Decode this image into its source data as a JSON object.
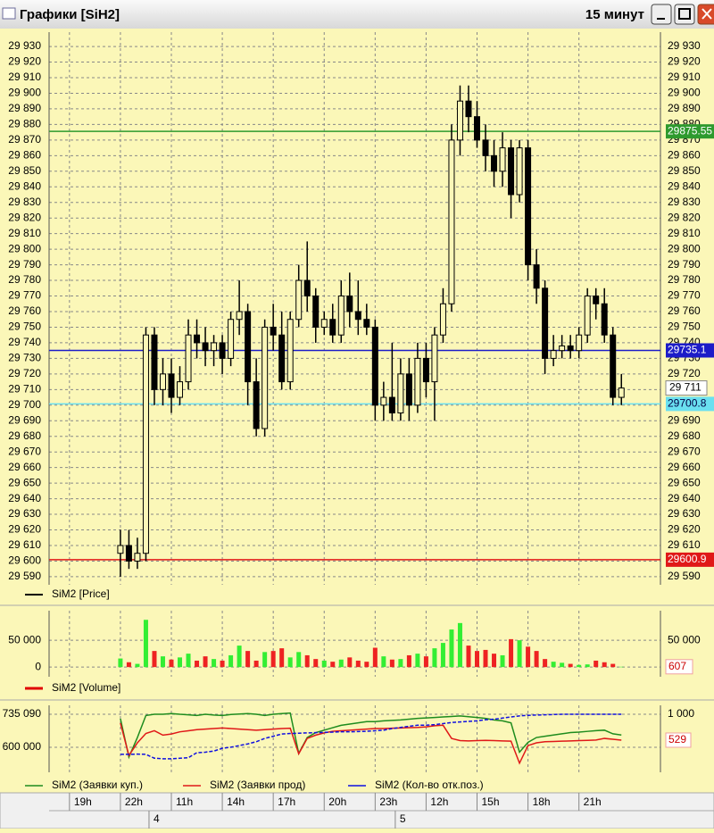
{
  "window": {
    "title": "Графики [SiH2]",
    "timeframe": "15 минут"
  },
  "time_axis": {
    "xlim": [
      -8.4,
      63.6
    ],
    "xticks": [
      {
        "value": -6,
        "label": "19h"
      },
      {
        "value": 0,
        "label": "22h"
      },
      {
        "value": 6,
        "label": "11h"
      },
      {
        "value": 12,
        "label": "14h"
      },
      {
        "value": 18,
        "label": "17h"
      },
      {
        "value": 24,
        "label": "20h"
      },
      {
        "value": 30,
        "label": "23h"
      },
      {
        "value": 36,
        "label": "12h"
      },
      {
        "value": 42,
        "label": "15h"
      },
      {
        "value": 48,
        "label": "18h"
      },
      {
        "value": 54,
        "label": "21h"
      }
    ],
    "dates": [
      {
        "value": 4,
        "label": "4"
      },
      {
        "value": 33,
        "label": "5"
      }
    ]
  },
  "chart_data": [
    {
      "type": "candlestick",
      "grid": true,
      "ylim": [
        29584.8,
        29939.2
      ],
      "yticks": [
        {
          "value": 29930,
          "label": "29 930"
        },
        {
          "value": 29920,
          "label": "29 920"
        },
        {
          "value": 29910,
          "label": "29 910"
        },
        {
          "value": 29900,
          "label": "29 900"
        },
        {
          "value": 29890,
          "label": "29 890"
        },
        {
          "value": 29880,
          "label": "29 880"
        },
        {
          "value": 29870,
          "label": "29 870"
        },
        {
          "value": 29860,
          "label": "29 860"
        },
        {
          "value": 29850,
          "label": "29 850"
        },
        {
          "value": 29840,
          "label": "29 840"
        },
        {
          "value": 29830,
          "label": "29 830"
        },
        {
          "value": 29820,
          "label": "29 820"
        },
        {
          "value": 29810,
          "label": "29 810"
        },
        {
          "value": 29800,
          "label": "29 800"
        },
        {
          "value": 29790,
          "label": "29 790"
        },
        {
          "value": 29780,
          "label": "29 780"
        },
        {
          "value": 29770,
          "label": "29 770"
        },
        {
          "value": 29760,
          "label": "29 760"
        },
        {
          "value": 29750,
          "label": "29 750"
        },
        {
          "value": 29740,
          "label": "29 740"
        },
        {
          "value": 29730,
          "label": "29 730"
        },
        {
          "value": 29720,
          "label": "29 720"
        },
        {
          "value": 29710,
          "label": "29 710"
        },
        {
          "value": 29700,
          "label": "29 700"
        },
        {
          "value": 29690,
          "label": "29 690"
        },
        {
          "value": 29680,
          "label": "29 680"
        },
        {
          "value": 29670,
          "label": "29 670"
        },
        {
          "value": 29660,
          "label": "29 660"
        },
        {
          "value": 29650,
          "label": "29 650"
        },
        {
          "value": 29640,
          "label": "29 640"
        },
        {
          "value": 29630,
          "label": "29 630"
        },
        {
          "value": 29620,
          "label": "29 620"
        },
        {
          "value": 29610,
          "label": "29 610"
        },
        {
          "value": 29600,
          "label": "29 600"
        },
        {
          "value": 29590,
          "label": "29 590"
        }
      ],
      "series": [
        {
          "name": "SiM2 [Price]",
          "color": "#000000",
          "open": [
            29605,
            29610,
            29600,
            29605,
            29745,
            29710,
            29720,
            29705,
            29715,
            29745,
            29740,
            29735,
            29740,
            29730,
            29755,
            29760,
            29715,
            29685,
            29750,
            29745,
            29715,
            29755,
            29780,
            29770,
            29750,
            29755,
            29745,
            29770,
            29760,
            29755,
            29750,
            29700,
            29705,
            29695,
            29720,
            29700,
            29730,
            29715,
            29745,
            29765,
            29870,
            29895,
            29885,
            29870,
            29860,
            29850,
            29865,
            29835,
            29865,
            29790,
            29775,
            29730,
            29735,
            29738,
            29735,
            29745,
            29770,
            29765,
            29745,
            29705
          ],
          "high": [
            29620,
            29620,
            29615,
            29750,
            29750,
            29730,
            29730,
            29725,
            29755,
            29755,
            29750,
            29745,
            29745,
            29760,
            29780,
            29765,
            29730,
            29755,
            29765,
            29760,
            29760,
            29790,
            29805,
            29775,
            29760,
            29765,
            29780,
            29785,
            29780,
            29765,
            29755,
            29715,
            29740,
            29730,
            29730,
            29740,
            29740,
            29750,
            29775,
            29880,
            29905,
            29905,
            29895,
            29880,
            29870,
            29875,
            29870,
            29870,
            29870,
            29800,
            29780,
            29745,
            29745,
            29745,
            29750,
            29775,
            29775,
            29775,
            29750,
            29720
          ],
          "low": [
            29590,
            29595,
            29595,
            29600,
            29700,
            29700,
            29695,
            29700,
            29710,
            29730,
            29725,
            29725,
            29720,
            29725,
            29745,
            29700,
            29680,
            29680,
            29735,
            29710,
            29710,
            29750,
            29760,
            29740,
            29745,
            29740,
            29740,
            29750,
            29745,
            29745,
            29690,
            29690,
            29690,
            29690,
            29690,
            29695,
            29705,
            29690,
            29740,
            29760,
            29860,
            29875,
            29865,
            29850,
            29840,
            29840,
            29820,
            29830,
            29780,
            29765,
            29720,
            29725,
            29730,
            29730,
            29730,
            29740,
            29755,
            29740,
            29700,
            29700
          ],
          "close": [
            29610,
            29600,
            29605,
            29745,
            29710,
            29720,
            29705,
            29715,
            29745,
            29740,
            29735,
            29740,
            29730,
            29755,
            29760,
            29715,
            29685,
            29750,
            29745,
            29715,
            29755,
            29780,
            29770,
            29750,
            29755,
            29745,
            29770,
            29760,
            29755,
            29750,
            29700,
            29705,
            29695,
            29720,
            29700,
            29730,
            29715,
            29745,
            29765,
            29870,
            29895,
            29885,
            29870,
            29860,
            29850,
            29865,
            29835,
            29865,
            29790,
            29775,
            29730,
            29735,
            29738,
            29735,
            29745,
            29770,
            29765,
            29745,
            29705,
            29711
          ]
        }
      ],
      "last_label": {
        "value": 29711,
        "label": "29 711"
      },
      "levels": [
        {
          "value": 29875.55,
          "color": "#2e9a2e"
        },
        {
          "value": 29735.1,
          "color": "#1c1cc8"
        },
        {
          "value": 29700.8,
          "color": "#6ae0f0"
        },
        {
          "value": 29600.9,
          "color": "#e01818"
        }
      ]
    },
    {
      "type": "bar",
      "grid": true,
      "ylim": [
        -18000,
        105000
      ],
      "yticks": [
        {
          "value": 50000,
          "label": "50 000"
        },
        0
      ],
      "up_color": "#33ee33",
      "down_color": "#ee2222",
      "series": [
        {
          "name": "SiM2 [Volume]",
          "color": "#e00000",
          "values": [
            16000,
            9000,
            6000,
            88000,
            30000,
            20000,
            14000,
            18000,
            25000,
            12000,
            20000,
            15000,
            12000,
            22000,
            40000,
            30000,
            12000,
            28000,
            30000,
            35000,
            18000,
            28000,
            22000,
            15000,
            12000,
            10000,
            14000,
            18000,
            12000,
            10000,
            36000,
            20000,
            14000,
            15000,
            22000,
            25000,
            20000,
            35000,
            45000,
            70000,
            82000,
            40000,
            30000,
            32000,
            25000,
            22000,
            52000,
            50000,
            38000,
            30000,
            15000,
            10000,
            8000,
            6000,
            4000,
            5000,
            12000,
            9000,
            6000,
            607
          ]
        }
      ]
    },
    {
      "type": "line",
      "grid": true,
      "ylim": [
        497700,
        771600
      ],
      "y2lim": [
        -56,
        1162
      ],
      "yticks": [
        {
          "value": 735090,
          "label": "735 090"
        },
        {
          "value": 600000,
          "label": "600 000"
        }
      ],
      "y2ticks": [
        {
          "value": 1000,
          "label": "1 000"
        }
      ],
      "series": [
        {
          "name": "SiM2 (Заявки куп.)",
          "color": "#1e8c1e",
          "axis": "y",
          "values": [
            717000,
            560000,
            640000,
            730000,
            735000,
            735000,
            738000,
            735000,
            733000,
            730000,
            735000,
            732000,
            730000,
            734000,
            736000,
            738000,
            735000,
            730000,
            735000,
            738000,
            740000,
            575000,
            640000,
            660000,
            670000,
            680000,
            690000,
            695000,
            700000,
            705000,
            705000,
            708000,
            710000,
            712000,
            715000,
            718000,
            720000,
            722000,
            724000,
            726000,
            728000,
            725000,
            722000,
            718000,
            712000,
            708000,
            700000,
            580000,
            620000,
            640000,
            645000,
            650000,
            655000,
            660000,
            662000,
            665000,
            668000,
            670000,
            655000,
            650000
          ]
        },
        {
          "name": "SiM2 (Заявки прод)",
          "color": "#e01818",
          "axis": "y2",
          "values": [
            838,
            250,
            480,
            650,
            700,
            620,
            640,
            680,
            700,
            720,
            730,
            740,
            750,
            740,
            730,
            720,
            710,
            720,
            730,
            740,
            745,
            280,
            560,
            620,
            660,
            690,
            700,
            710,
            720,
            730,
            740,
            740,
            745,
            750,
            755,
            760,
            770,
            790,
            800,
            560,
            520,
            515,
            520,
            525,
            520,
            515,
            510,
            110,
            430,
            480,
            500,
            505,
            510,
            515,
            520,
            525,
            530,
            560,
            545,
            529
          ]
        },
        {
          "name": "SiM2 (Кол-во отк.поз.)",
          "color": "#1010e0",
          "axis": "y2",
          "dashed": true,
          "values": [
            270,
            270,
            275,
            270,
            200,
            190,
            190,
            200,
            210,
            300,
            310,
            330,
            380,
            400,
            430,
            460,
            500,
            560,
            600,
            640,
            650,
            655,
            660,
            665,
            670,
            675,
            680,
            680,
            685,
            690,
            700,
            710,
            740,
            760,
            780,
            800,
            800,
            810,
            830,
            850,
            860,
            870,
            880,
            900,
            910,
            930,
            950,
            970,
            980,
            985,
            990,
            995,
            1000,
            1000,
            1000,
            1000,
            1000,
            1000,
            1000,
            1000
          ]
        }
      ]
    }
  ]
}
